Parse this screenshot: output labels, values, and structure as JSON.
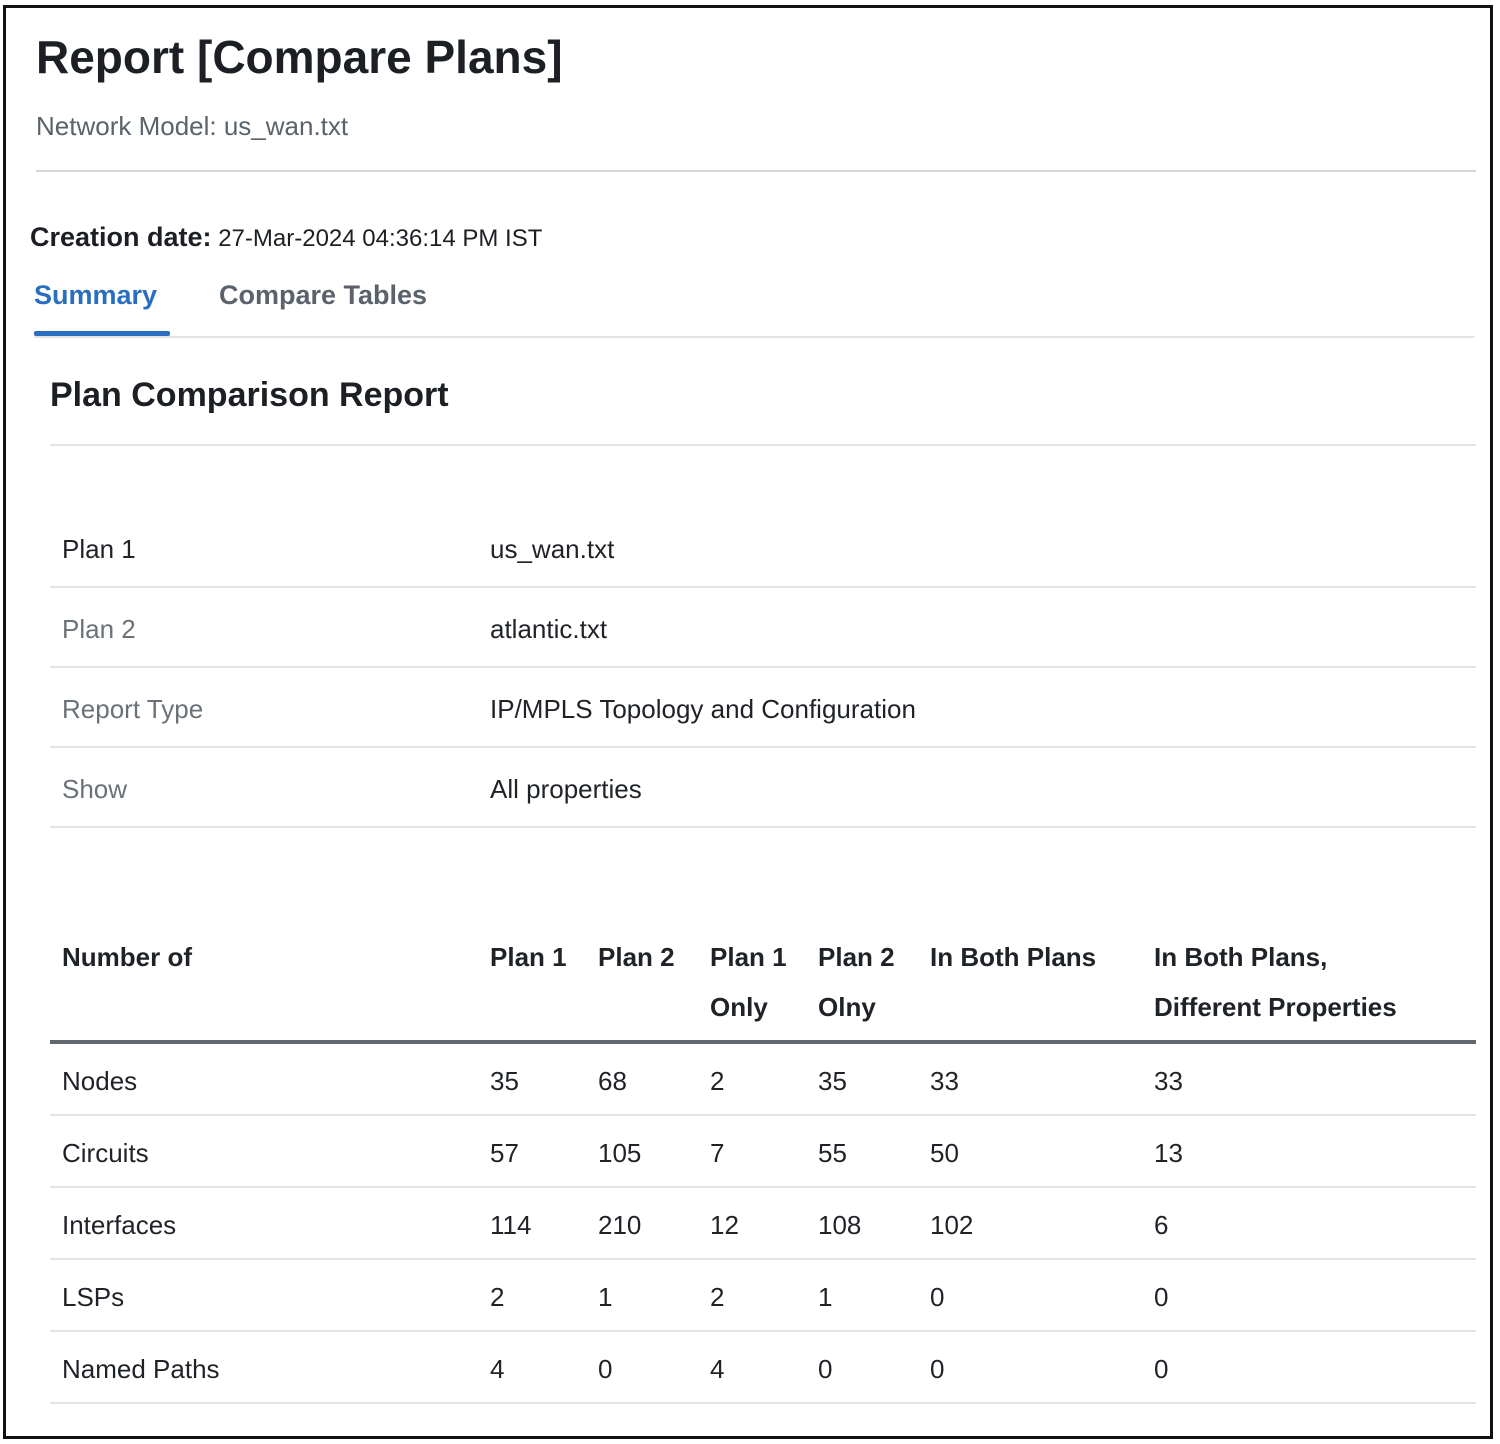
{
  "header": {
    "title": "Report [Compare Plans]",
    "network_model": "Network Model: us_wan.txt"
  },
  "creation": {
    "label": "Creation date:",
    "value": "27-Mar-2024 04:36:14 PM IST"
  },
  "tabs": [
    {
      "label": "Summary",
      "active": true
    },
    {
      "label": "Compare Tables",
      "active": false
    }
  ],
  "section": {
    "title": "Plan Comparison Report"
  },
  "details": [
    {
      "key": "Plan 1",
      "value": "us_wan.txt"
    },
    {
      "key": "Plan 2",
      "value": "atlantic.txt"
    },
    {
      "key": "Report Type",
      "value": "IP/MPLS Topology and Configuration"
    },
    {
      "key": "Show",
      "value": "All properties"
    }
  ],
  "table": {
    "headers": [
      [
        "Number of"
      ],
      [
        "Plan 1"
      ],
      [
        "Plan 2"
      ],
      [
        "Plan 1",
        "Only"
      ],
      [
        "Plan 2",
        "Olny"
      ],
      [
        "In Both Plans"
      ],
      [
        "In Both Plans,",
        "Different Properties"
      ]
    ],
    "rows": [
      [
        "Nodes",
        "35",
        "68",
        "2",
        "35",
        "33",
        "33"
      ],
      [
        "Circuits",
        "57",
        "105",
        "7",
        "55",
        "50",
        "13"
      ],
      [
        "Interfaces",
        "114",
        "210",
        "12",
        "108",
        "102",
        "6"
      ],
      [
        "LSPs",
        "2",
        "1",
        "2",
        "1",
        "0",
        "0"
      ],
      [
        "Named Paths",
        "4",
        "0",
        "4",
        "0",
        "0",
        "0"
      ]
    ]
  },
  "colors": {
    "accent": "#2a6ebf",
    "text": "#1f2328",
    "muted": "#6b7178",
    "divider": "#e1e4e7"
  }
}
